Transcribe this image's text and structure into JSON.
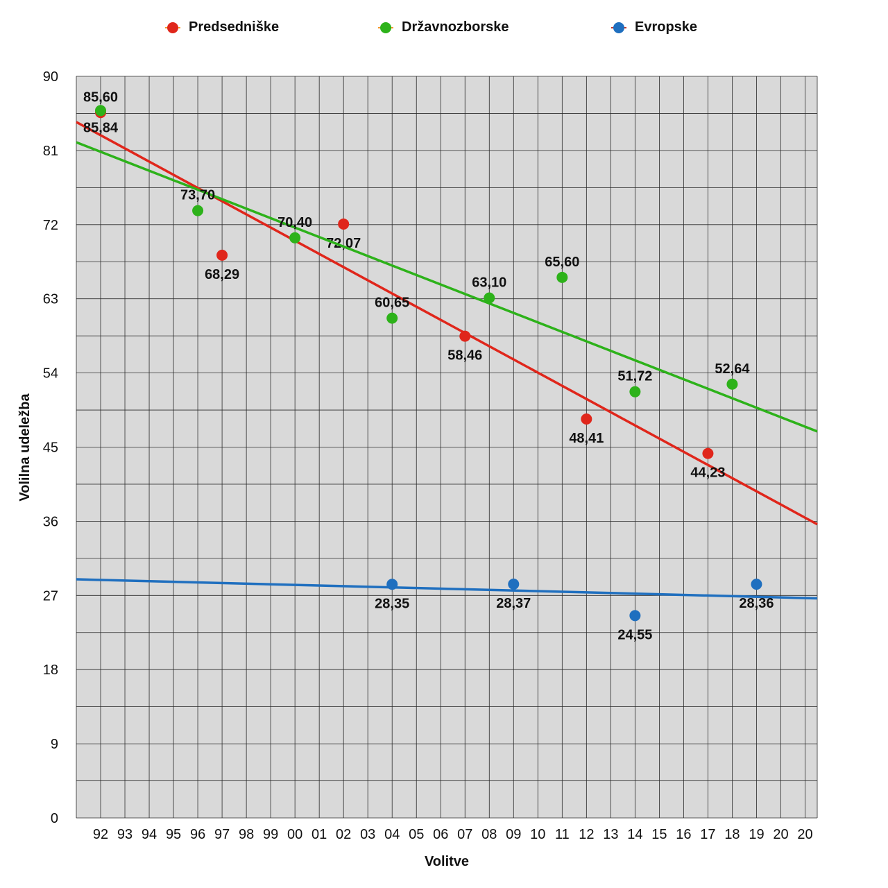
{
  "chart_data": {
    "type": "scatter",
    "xlabel": "Volitve",
    "ylabel": "Volilna udeležba",
    "ylim": [
      0,
      90
    ],
    "yticks": [
      "0",
      "9",
      "18",
      "27",
      "36",
      "45",
      "54",
      "63",
      "72",
      "81",
      "90"
    ],
    "categories": [
      "92",
      "93",
      "94",
      "95",
      "96",
      "97",
      "98",
      "99",
      "00",
      "01",
      "02",
      "03",
      "04",
      "05",
      "06",
      "07",
      "08",
      "09",
      "10",
      "11",
      "12",
      "13",
      "14",
      "15",
      "16",
      "17",
      "18",
      "19",
      "20",
      "20"
    ],
    "grid": true,
    "legend_position": "top",
    "series": [
      {
        "name": "Predsedniške",
        "color": "#e0261b",
        "trendline": true,
        "points": [
          {
            "x": "92",
            "y": 85.6,
            "label": "85,60"
          },
          {
            "x": "97",
            "y": 68.29,
            "label": "68,29"
          },
          {
            "x": "02",
            "y": 72.07,
            "label": "72,07"
          },
          {
            "x": "07",
            "y": 58.46,
            "label": "58,46"
          },
          {
            "x": "12",
            "y": 48.41,
            "label": "48,41"
          },
          {
            "x": "17",
            "y": 44.23,
            "label": "44,23"
          }
        ]
      },
      {
        "name": "Državnozborske",
        "color": "#2db21a",
        "trendline": true,
        "points": [
          {
            "x": "92",
            "y": 85.84,
            "label": "85,84"
          },
          {
            "x": "96",
            "y": 73.7,
            "label": "73,70"
          },
          {
            "x": "00",
            "y": 70.4,
            "label": "70,40"
          },
          {
            "x": "04",
            "y": 60.65,
            "label": "60,65"
          },
          {
            "x": "08",
            "y": 63.1,
            "label": "63,10"
          },
          {
            "x": "11",
            "y": 65.6,
            "label": "65,60"
          },
          {
            "x": "14",
            "y": 51.72,
            "label": "51,72"
          },
          {
            "x": "18",
            "y": 52.64,
            "label": "52,64"
          }
        ]
      },
      {
        "name": "Evropske",
        "color": "#1f6fbf",
        "trendline": true,
        "points": [
          {
            "x": "04",
            "y": 28.35,
            "label": "28,35"
          },
          {
            "x": "09",
            "y": 28.37,
            "label": "28,37"
          },
          {
            "x": "14",
            "y": 24.55,
            "label": "24,55"
          },
          {
            "x": "19",
            "y": 28.36,
            "label": "28,36"
          }
        ]
      }
    ]
  }
}
